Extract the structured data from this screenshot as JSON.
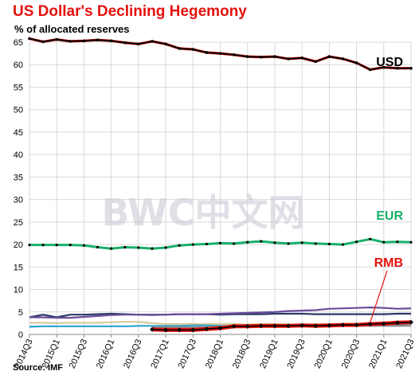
{
  "title": "US Dollar's  Declining Hegemony",
  "subtitle": "% of allocated reserves",
  "source": "Source: IMF",
  "watermark": "BWC中文网",
  "colors": {
    "title": "#e3120b",
    "grid": "#d9d9d9",
    "usd": "#000000",
    "usd_outline": "#e3120b",
    "eur": "#18b06a",
    "rmb": "#000000",
    "rmb_outline": "#e3120b",
    "purple": "#6a4c9c",
    "navy": "#2b3a67",
    "cyan": "#29a3d1",
    "tan": "#d8c79a",
    "gray": "#8c8c8c"
  },
  "chart_data": {
    "type": "line",
    "title": "US Dollar's  Declining Hegemony",
    "ylabel": "% of allocated reserves",
    "ylim": [
      0,
      65
    ],
    "yticks": [
      0,
      5,
      10,
      15,
      20,
      25,
      30,
      35,
      40,
      45,
      50,
      55,
      60,
      65
    ],
    "grid": true,
    "xtick_labels": [
      "2014Q3",
      "2015Q1",
      "2015Q3",
      "2016Q1",
      "2016Q3",
      "2017Q1",
      "2017Q3",
      "2018Q1",
      "2018Q3",
      "2019Q1",
      "2019Q3",
      "2020Q1",
      "2020Q3",
      "2021Q1",
      "2021Q3"
    ],
    "x": [
      "2014Q3",
      "2014Q4",
      "2015Q1",
      "2015Q2",
      "2015Q3",
      "2015Q4",
      "2016Q1",
      "2016Q2",
      "2016Q3",
      "2016Q4",
      "2017Q1",
      "2017Q2",
      "2017Q3",
      "2017Q4",
      "2018Q1",
      "2018Q2",
      "2018Q3",
      "2018Q4",
      "2019Q1",
      "2019Q2",
      "2019Q3",
      "2019Q4",
      "2020Q1",
      "2020Q2",
      "2020Q3",
      "2020Q4",
      "2021Q1",
      "2021Q2",
      "2021Q3"
    ],
    "series": [
      {
        "name": "USD",
        "key": "usd",
        "labeled": true,
        "values": [
          65.8,
          65.1,
          65.6,
          65.2,
          65.3,
          65.5,
          65.3,
          64.9,
          64.6,
          65.2,
          64.6,
          63.6,
          63.4,
          62.7,
          62.5,
          62.2,
          61.8,
          61.7,
          61.8,
          61.3,
          61.5,
          60.7,
          61.8,
          61.3,
          60.4,
          58.9,
          59.4,
          59.2,
          59.2
        ]
      },
      {
        "name": "EUR",
        "key": "eur",
        "labeled": true,
        "values": [
          19.9,
          19.9,
          19.9,
          19.9,
          19.8,
          19.4,
          19.1,
          19.4,
          19.3,
          19.1,
          19.3,
          19.8,
          20.0,
          20.1,
          20.3,
          20.2,
          20.5,
          20.7,
          20.4,
          20.2,
          20.4,
          20.2,
          20.1,
          20.0,
          20.6,
          21.2,
          20.5,
          20.6,
          20.5
        ]
      },
      {
        "name": "",
        "key": "purple",
        "labeled": false,
        "values": [
          3.8,
          3.8,
          3.7,
          3.7,
          3.9,
          4.1,
          4.3,
          4.4,
          4.4,
          4.3,
          4.4,
          4.5,
          4.5,
          4.5,
          4.6,
          4.7,
          4.8,
          4.9,
          5.0,
          5.2,
          5.3,
          5.4,
          5.7,
          5.8,
          5.9,
          6.0,
          5.9,
          5.7,
          5.8
        ]
      },
      {
        "name": "",
        "key": "navy",
        "labeled": false,
        "values": [
          3.8,
          4.4,
          3.8,
          4.4,
          4.4,
          4.5,
          4.6,
          4.5,
          4.4,
          4.4,
          4.4,
          4.5,
          4.5,
          4.5,
          4.4,
          4.5,
          4.5,
          4.5,
          4.6,
          4.6,
          4.6,
          4.5,
          4.5,
          4.5,
          4.5,
          4.5,
          4.5,
          4.6,
          4.6
        ]
      },
      {
        "name": "",
        "key": "tan",
        "labeled": false,
        "values": [
          2.6,
          2.6,
          2.5,
          2.6,
          2.6,
          2.6,
          2.7,
          2.8,
          2.8,
          2.5,
          2.3,
          2.3,
          2.3,
          2.3,
          2.3,
          2.3,
          2.2,
          2.3,
          2.3,
          2.2,
          2.2,
          2.3,
          2.3,
          2.3,
          2.3,
          2.3,
          2.2,
          2.2,
          2.2
        ]
      },
      {
        "name": "",
        "key": "cyan",
        "labeled": false,
        "values": [
          1.7,
          1.8,
          1.8,
          1.8,
          1.8,
          1.8,
          1.8,
          1.8,
          1.9,
          1.9,
          1.9,
          1.9,
          2.0,
          2.0,
          1.9,
          1.9,
          1.8,
          1.8,
          1.9,
          1.9,
          1.9,
          1.9,
          1.9,
          1.9,
          2.0,
          2.1,
          2.2,
          2.2,
          2.4
        ]
      },
      {
        "name": "",
        "key": "gray",
        "labeled": false,
        "values": [
          null,
          null,
          null,
          null,
          null,
          null,
          null,
          null,
          null,
          1.5,
          1.6,
          1.6,
          1.6,
          1.6,
          1.7,
          1.7,
          1.7,
          1.7,
          1.8,
          1.8,
          1.9,
          1.9,
          1.9,
          1.9,
          1.9,
          1.9,
          1.9,
          1.9,
          1.9
        ]
      },
      {
        "name": "RMB",
        "key": "rmb",
        "labeled": true,
        "values": [
          null,
          null,
          null,
          null,
          null,
          null,
          null,
          null,
          null,
          1.1,
          1.0,
          1.0,
          1.0,
          1.2,
          1.4,
          1.8,
          1.8,
          1.9,
          1.9,
          1.9,
          2.0,
          1.9,
          2.0,
          2.1,
          2.1,
          2.3,
          2.4,
          2.6,
          2.7
        ]
      }
    ]
  }
}
